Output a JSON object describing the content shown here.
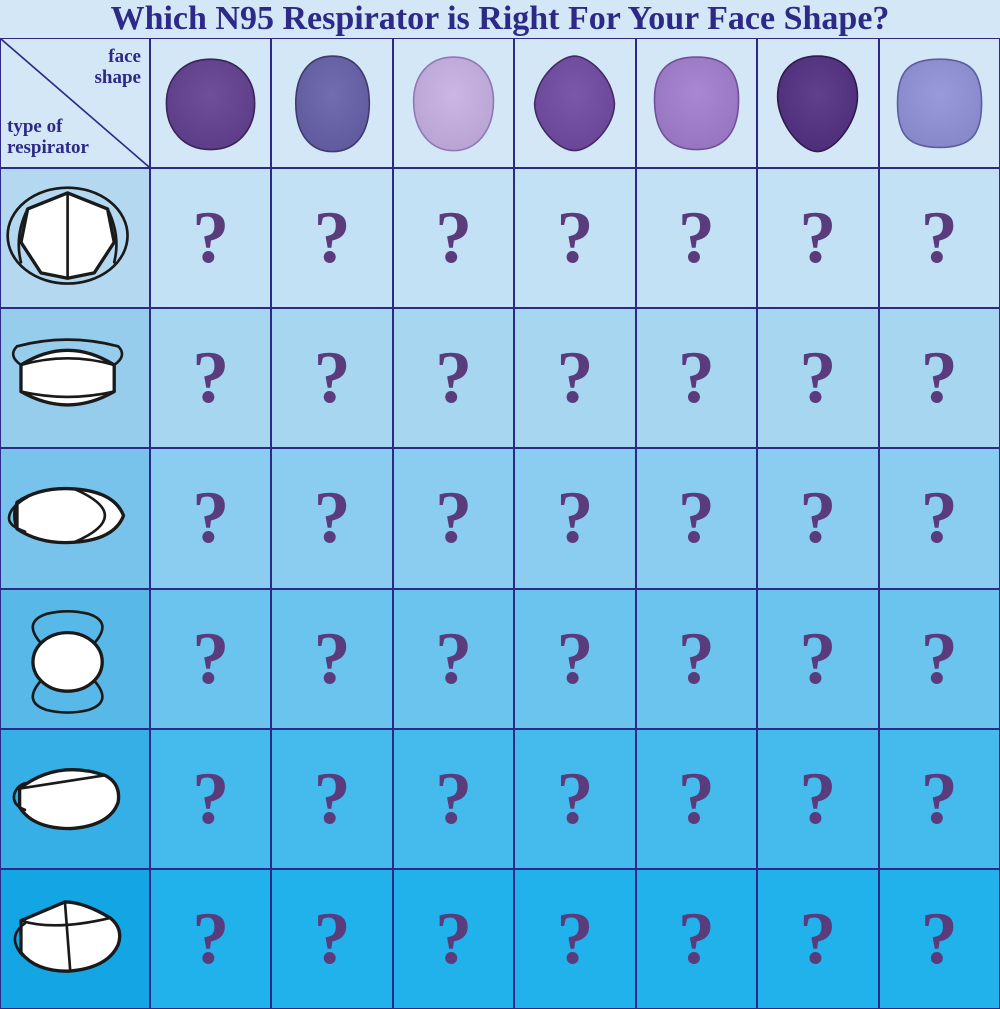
{
  "title": "Which N95 Respirator is Right For Your Face Shape?",
  "title_color": "#2d2a87",
  "title_fontsize": 34,
  "title_bg": "#d4e7f7",
  "grid_border_color": "#2d2a87",
  "header_bg": "#d4e7f7",
  "corner": {
    "top_label_line1": "face",
    "top_label_line2": "shape",
    "bottom_label_line1": "type of",
    "bottom_label_line2": "respirator",
    "label_color": "#2d2a87",
    "label_fontsize": 19
  },
  "face_shapes": [
    {
      "type": "oval-wide",
      "fill": "#5d3d87",
      "stroke": "#3a2458"
    },
    {
      "type": "oval-tall",
      "fill": "#605a9e",
      "stroke": "#3f3a6e"
    },
    {
      "type": "egg",
      "fill": "#b9a4d4",
      "stroke": "#8f79b5"
    },
    {
      "type": "diamond",
      "fill": "#6a4699",
      "stroke": "#432a63"
    },
    {
      "type": "rounded-square",
      "fill": "#9875c0",
      "stroke": "#6e4f98"
    },
    {
      "type": "pointed-chin",
      "fill": "#4e2e7a",
      "stroke": "#2f1a4e"
    },
    {
      "type": "squircle",
      "fill": "#8788c9",
      "stroke": "#5c5ca0"
    }
  ],
  "respirator_types": [
    "flat-fold-panel",
    "trifold",
    "duckbill",
    "cup",
    "boat",
    "kn95"
  ],
  "row_backgrounds": [
    "#c3e1f5",
    "#a7d7f0",
    "#8acdf0",
    "#6ac4ed",
    "#45bbed",
    "#21b1eb"
  ],
  "row_header_bgs": [
    "#b3d8f0",
    "#96cdec",
    "#78c3eb",
    "#58b9e8",
    "#35afe6",
    "#14a5e4"
  ],
  "question_mark": {
    "text": "?",
    "color": "#5a3c7d",
    "fontsize": 74
  },
  "mask_stroke": "#1a1a1a",
  "mask_fill": "#ffffff"
}
